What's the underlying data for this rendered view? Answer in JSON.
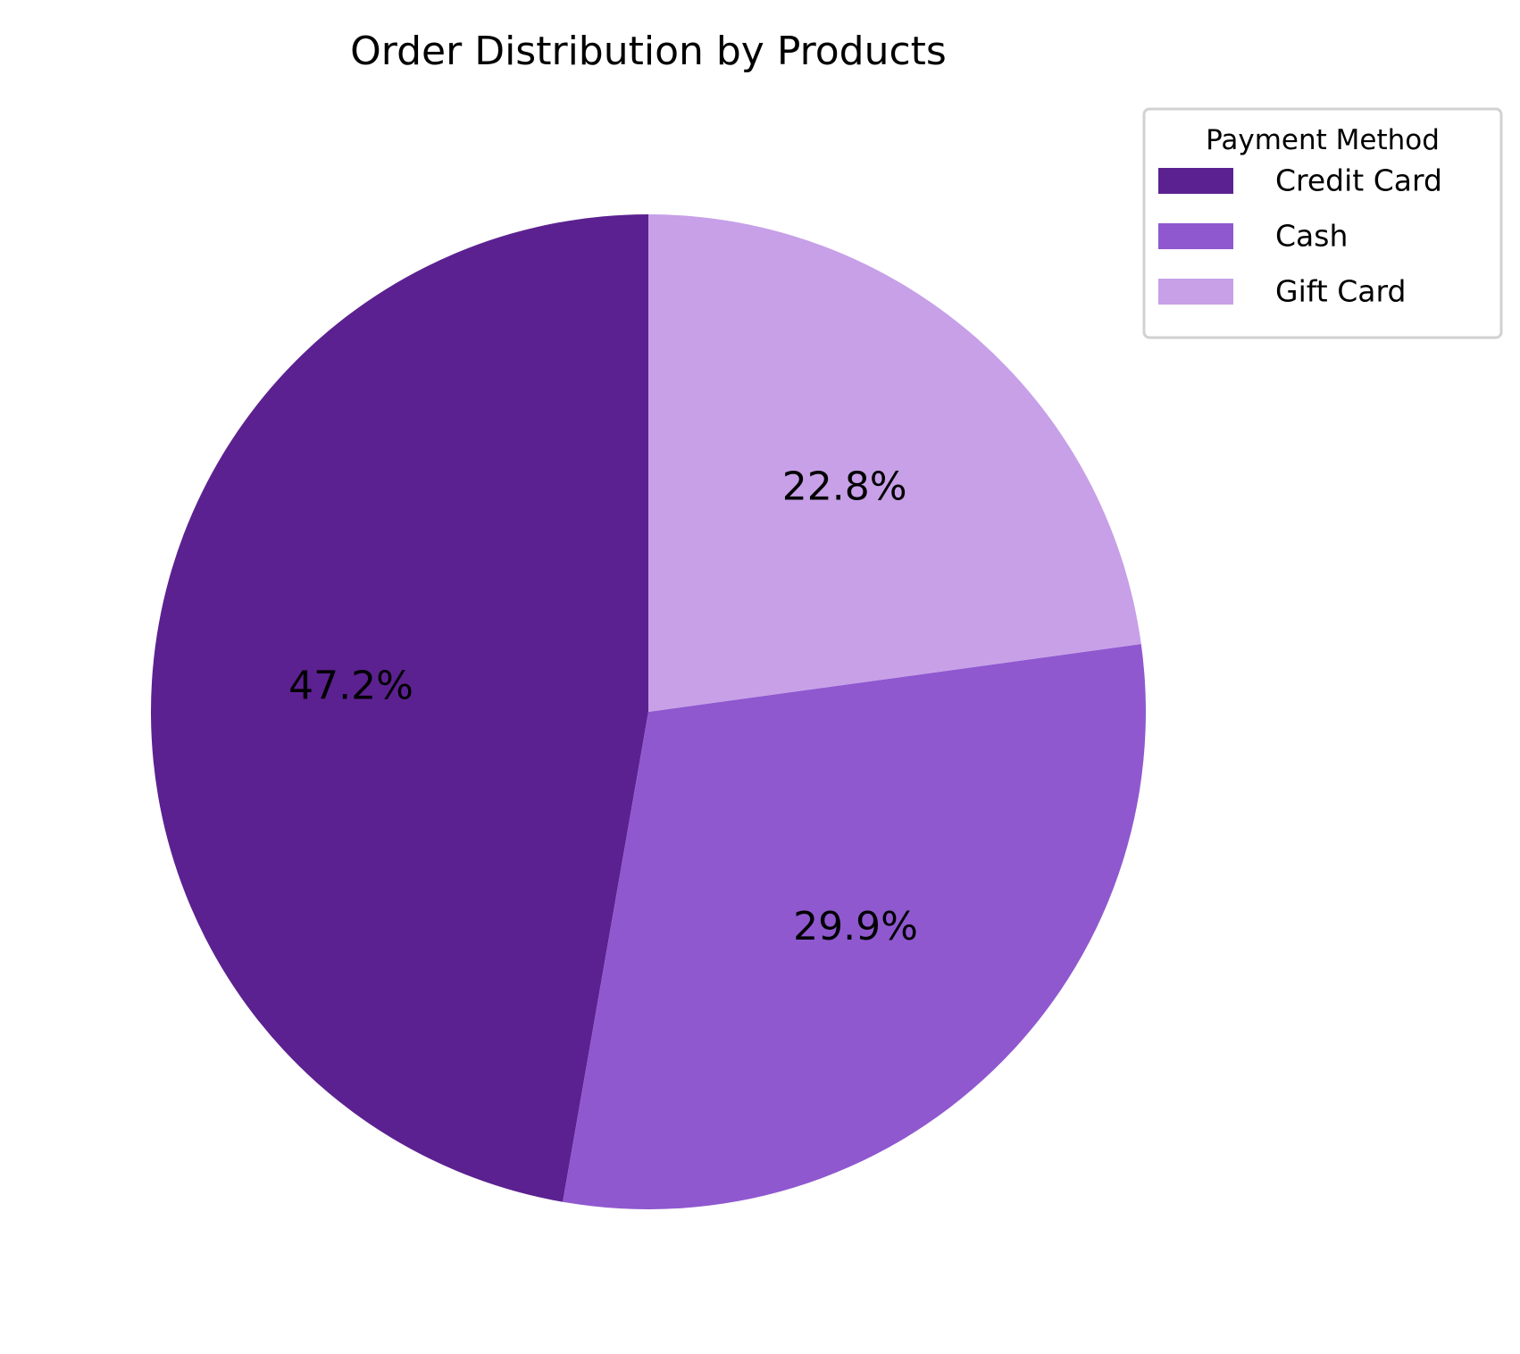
{
  "chart_data": {
    "type": "pie",
    "title": "Order Distribution by Products",
    "legend": {
      "title": "Payment Method",
      "placement": "top-right"
    },
    "start_angle_deg": 90,
    "direction": "counterclockwise",
    "slices": [
      {
        "label": "Credit Card",
        "value": 47.2,
        "display": "47.2%",
        "color": "#5c2190"
      },
      {
        "label": "Cash",
        "value": 29.9,
        "display": "29.9%",
        "color": "#8f58cf"
      },
      {
        "label": "Gift Card",
        "value": 22.8,
        "display": "22.8%",
        "color": "#c7a0e8"
      }
    ]
  }
}
